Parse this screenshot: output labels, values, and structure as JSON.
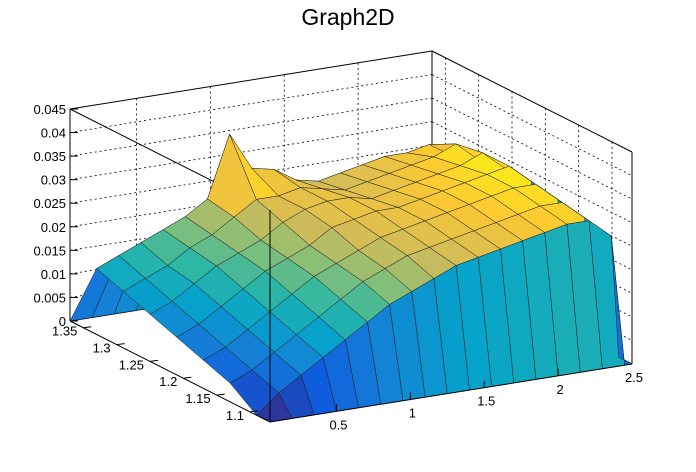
{
  "chart_data": {
    "type": "surface3d",
    "title": "Graph2D",
    "xlabel": "",
    "ylabel": "",
    "zlabel": "",
    "xlim": [
      0.05,
      2.5
    ],
    "ylim": [
      1.07,
      1.37
    ],
    "zlim": [
      0,
      0.045
    ],
    "x_ticks": [
      0.5,
      1,
      1.5,
      2,
      2.5
    ],
    "x_tick_labels": [
      "0.5",
      "1",
      "1.5",
      "2",
      "2.5"
    ],
    "y_ticks": [
      1.1,
      1.15,
      1.2,
      1.25,
      1.3,
      1.35
    ],
    "y_tick_labels": [
      "1.1",
      "1.15",
      "1.2",
      "1.25",
      "1.3",
      "1.35"
    ],
    "z_ticks": [
      0,
      0.005,
      0.01,
      0.015,
      0.02,
      0.025,
      0.03,
      0.035,
      0.04,
      0.045
    ],
    "z_tick_labels": [
      "0",
      "0.005",
      "0.01",
      "0.015",
      "0.02",
      "0.025",
      "0.03",
      "0.035",
      "0.04",
      "0.045"
    ],
    "grid": true,
    "colormap": [
      "#352a87",
      "#0f5cdd",
      "#1481d6",
      "#06a4ca",
      "#2eb7a4",
      "#87bf77",
      "#d1bb59",
      "#fec832",
      "#f9fb0e"
    ],
    "grid_x": [
      0.05,
      0.2,
      0.35,
      0.5,
      0.65,
      0.8,
      0.95,
      1.1,
      1.25,
      1.4,
      1.55,
      1.7,
      1.85,
      2.0,
      2.15,
      2.3,
      2.45,
      2.5
    ],
    "grid_y": [
      1.37,
      1.33,
      1.29,
      1.25,
      1.21,
      1.17,
      1.13,
      1.09,
      1.07
    ],
    "z_values": [
      [
        0.0,
        0.0,
        0.0,
        0.0,
        0.0,
        0.0,
        0.0,
        0.0,
        0.0,
        0.0,
        0.0,
        0.0,
        0.0,
        0.0,
        0.0,
        0.0,
        0.0,
        0.0
      ],
      [
        0.014,
        0.016,
        0.018,
        0.02,
        0.022,
        0.025,
        0.038,
        0.03,
        0.029,
        0.026,
        0.025,
        0.026,
        0.027,
        0.028,
        0.028,
        0.029,
        0.026,
        0.0
      ],
      [
        0.012,
        0.014,
        0.016,
        0.019,
        0.021,
        0.024,
        0.027,
        0.027,
        0.028,
        0.027,
        0.026,
        0.027,
        0.028,
        0.029,
        0.03,
        0.032,
        0.028,
        0.0
      ],
      [
        0.01,
        0.012,
        0.015,
        0.018,
        0.02,
        0.022,
        0.025,
        0.027,
        0.028,
        0.028,
        0.027,
        0.028,
        0.029,
        0.03,
        0.031,
        0.033,
        0.029,
        0.0
      ],
      [
        0.008,
        0.01,
        0.013,
        0.016,
        0.019,
        0.021,
        0.023,
        0.026,
        0.027,
        0.028,
        0.028,
        0.029,
        0.03,
        0.031,
        0.032,
        0.033,
        0.029,
        0.0
      ],
      [
        0.006,
        0.008,
        0.011,
        0.014,
        0.017,
        0.02,
        0.022,
        0.024,
        0.026,
        0.027,
        0.028,
        0.029,
        0.03,
        0.031,
        0.032,
        0.032,
        0.028,
        0.0
      ],
      [
        0.004,
        0.006,
        0.009,
        0.012,
        0.015,
        0.018,
        0.021,
        0.023,
        0.025,
        0.026,
        0.027,
        0.028,
        0.029,
        0.03,
        0.031,
        0.031,
        0.027,
        0.0
      ],
      [
        0.0,
        0.004,
        0.007,
        0.01,
        0.013,
        0.016,
        0.019,
        0.021,
        0.023,
        0.025,
        0.026,
        0.027,
        0.028,
        0.029,
        0.03,
        0.03,
        0.026,
        0.0
      ],
      [
        0.0,
        0.0,
        0.0,
        0.0,
        0.0,
        0.0,
        0.0,
        0.0,
        0.0,
        0.0,
        0.0,
        0.0,
        0.0,
        0.0,
        0.0,
        0.0,
        0.0,
        0.0
      ]
    ]
  }
}
